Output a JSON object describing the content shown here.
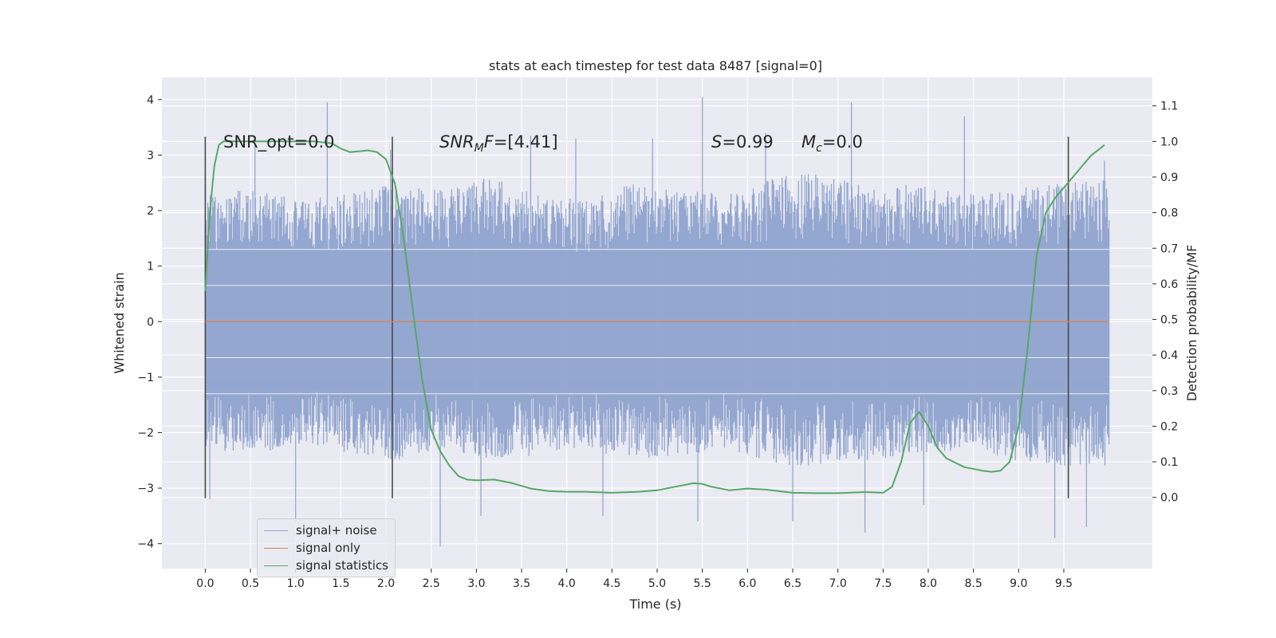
{
  "chart_data": {
    "type": "line",
    "title": "stats at each timestep for test data 8487 [signal=0]",
    "xlabel": "Time (s)",
    "ylabel_left": "Whitened strain",
    "ylabel_right": "Detection probability/MF",
    "x_ticks": [
      "0.0",
      "0.5",
      "1.0",
      "1.5",
      "2.0",
      "2.5",
      "3.0",
      "3.5",
      "4.0",
      "4.5",
      "5.0",
      "5.5",
      "6.0",
      "6.5",
      "7.0",
      "7.5",
      "8.0",
      "8.5",
      "9.0",
      "9.5"
    ],
    "y_left_ticks": [
      "−4",
      "−3",
      "−2",
      "−1",
      "0",
      "1",
      "2",
      "3",
      "4"
    ],
    "y_right_ticks": [
      "0.0",
      "0.1",
      "0.2",
      "0.3",
      "0.4",
      "0.5",
      "0.6",
      "0.7",
      "0.8",
      "0.9",
      "1.0",
      "1.1"
    ],
    "xlim": [
      -0.48,
      10.48
    ],
    "ylim_left": [
      -4.45,
      4.4
    ],
    "ylim_right": [
      -0.2,
      1.18
    ],
    "grid": true,
    "legend_position": "lower-left",
    "annotations": {
      "snr_opt": "SNR_opt=0.0",
      "snr_mf_label": "SNR",
      "snr_mf_sub": "M",
      "snr_mf_tail": "F",
      "snr_mf_value": "=[4.41]",
      "s_label": "S",
      "s_value": "=0.99",
      "mc_label": "M",
      "mc_sub": "c",
      "mc_value": "=0.0"
    },
    "window_markers_x": [
      0.0,
      2.07,
      9.55
    ],
    "series": [
      {
        "name": "signal+ noise",
        "axis": "left",
        "color": "#8fa3cd",
        "x_range": [
          0.0,
          10.0
        ],
        "envelope_upper": [
          2.3,
          2.4,
          2.2,
          2.3,
          2.5,
          2.4,
          2.6,
          2.3,
          2.2,
          2.5,
          2.4,
          2.3,
          2.6,
          2.7,
          2.4,
          2.5,
          2.3,
          2.4,
          2.5,
          2.6
        ],
        "envelope_lower": [
          -2.3,
          -2.4,
          -2.2,
          -2.4,
          -2.5,
          -2.3,
          -2.5,
          -2.4,
          -2.3,
          -2.5,
          -2.4,
          -2.3,
          -2.6,
          -2.6,
          -2.5,
          -2.4,
          -2.3,
          -2.5,
          -2.6,
          -2.6
        ],
        "peaks": [
          {
            "x": 0.0,
            "y": 2.7
          },
          {
            "x": 0.05,
            "y": -3.2
          },
          {
            "x": 0.55,
            "y": 3.2
          },
          {
            "x": 1.0,
            "y": -3.6
          },
          {
            "x": 1.35,
            "y": 3.95
          },
          {
            "x": 2.05,
            "y": 3.1
          },
          {
            "x": 2.6,
            "y": -4.05
          },
          {
            "x": 3.05,
            "y": -3.5
          },
          {
            "x": 3.6,
            "y": 3.35
          },
          {
            "x": 4.1,
            "y": 3.3
          },
          {
            "x": 4.4,
            "y": -3.5
          },
          {
            "x": 4.95,
            "y": 3.3
          },
          {
            "x": 5.45,
            "y": -3.6
          },
          {
            "x": 5.5,
            "y": 4.05
          },
          {
            "x": 6.2,
            "y": 3.4
          },
          {
            "x": 6.5,
            "y": -3.6
          },
          {
            "x": 7.15,
            "y": 3.95
          },
          {
            "x": 7.3,
            "y": -3.8
          },
          {
            "x": 7.95,
            "y": -3.3
          },
          {
            "x": 8.4,
            "y": 3.7
          },
          {
            "x": 9.4,
            "y": -3.9
          },
          {
            "x": 9.75,
            "y": -3.7
          },
          {
            "x": 9.95,
            "y": 2.9
          }
        ]
      },
      {
        "name": "signal only",
        "axis": "left",
        "color": "#dd8452",
        "x": [
          0.0,
          10.0
        ],
        "y": [
          0.0,
          0.0
        ]
      },
      {
        "name": "signal statistics",
        "axis": "right",
        "color": "#55a868",
        "x": [
          0.0,
          0.05,
          0.1,
          0.15,
          0.2,
          0.3,
          0.5,
          0.8,
          1.0,
          1.2,
          1.4,
          1.5,
          1.6,
          1.7,
          1.8,
          1.9,
          2.0,
          2.1,
          2.2,
          2.3,
          2.4,
          2.5,
          2.6,
          2.7,
          2.8,
          2.9,
          3.0,
          3.2,
          3.4,
          3.6,
          3.8,
          4.0,
          4.2,
          4.5,
          4.8,
          5.0,
          5.2,
          5.4,
          5.5,
          5.6,
          5.8,
          6.0,
          6.2,
          6.5,
          6.8,
          7.0,
          7.3,
          7.5,
          7.6,
          7.7,
          7.8,
          7.9,
          8.0,
          8.1,
          8.2,
          8.4,
          8.6,
          8.7,
          8.8,
          8.9,
          9.0,
          9.1,
          9.2,
          9.3,
          9.4,
          9.5,
          9.6,
          9.7,
          9.8,
          9.9,
          9.95
        ],
        "y": [
          0.58,
          0.8,
          0.93,
          0.99,
          1.0,
          1.0,
          1.0,
          1.0,
          1.0,
          1.0,
          0.995,
          0.98,
          0.97,
          0.972,
          0.975,
          0.97,
          0.95,
          0.88,
          0.72,
          0.52,
          0.33,
          0.19,
          0.13,
          0.09,
          0.06,
          0.05,
          0.048,
          0.05,
          0.04,
          0.025,
          0.018,
          0.016,
          0.016,
          0.013,
          0.016,
          0.02,
          0.03,
          0.04,
          0.038,
          0.03,
          0.02,
          0.025,
          0.022,
          0.013,
          0.012,
          0.012,
          0.015,
          0.013,
          0.03,
          0.1,
          0.21,
          0.24,
          0.2,
          0.14,
          0.11,
          0.085,
          0.075,
          0.072,
          0.075,
          0.1,
          0.2,
          0.42,
          0.68,
          0.8,
          0.84,
          0.87,
          0.9,
          0.93,
          0.96,
          0.98,
          0.99
        ]
      }
    ]
  }
}
